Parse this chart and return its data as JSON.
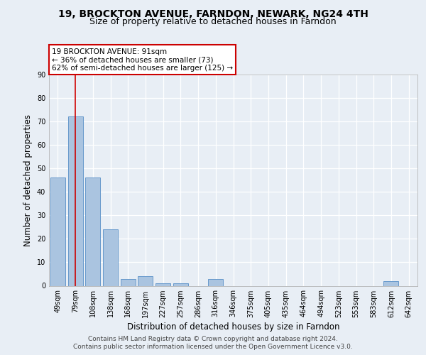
{
  "title1": "19, BROCKTON AVENUE, FARNDON, NEWARK, NG24 4TH",
  "title2": "Size of property relative to detached houses in Farndon",
  "xlabel": "Distribution of detached houses by size in Farndon",
  "ylabel": "Number of detached properties",
  "footer1": "Contains HM Land Registry data © Crown copyright and database right 2024.",
  "footer2": "Contains public sector information licensed under the Open Government Licence v3.0.",
  "annotation_line1": "19 BROCKTON AVENUE: 91sqm",
  "annotation_line2": "← 36% of detached houses are smaller (73)",
  "annotation_line3": "62% of semi-detached houses are larger (125) →",
  "bar_labels": [
    "49sqm",
    "79sqm",
    "108sqm",
    "138sqm",
    "168sqm",
    "197sqm",
    "227sqm",
    "257sqm",
    "286sqm",
    "316sqm",
    "346sqm",
    "375sqm",
    "405sqm",
    "435sqm",
    "464sqm",
    "494sqm",
    "523sqm",
    "553sqm",
    "583sqm",
    "612sqm",
    "642sqm"
  ],
  "bar_values": [
    46,
    72,
    46,
    24,
    3,
    4,
    1,
    1,
    0,
    3,
    0,
    0,
    0,
    0,
    0,
    0,
    0,
    0,
    0,
    2,
    0
  ],
  "bar_color": "#aac4e0",
  "bar_edge_color": "#6699cc",
  "vline_x": 1.5,
  "vline_color": "#cc0000",
  "ylim": [
    0,
    90
  ],
  "yticks": [
    0,
    10,
    20,
    30,
    40,
    50,
    60,
    70,
    80,
    90
  ],
  "background_color": "#e8eef5",
  "plot_bg_color": "#e8eef5",
  "annotation_box_color": "#ffffff",
  "annotation_border_color": "#cc0000",
  "grid_color": "#ffffff",
  "title_fontsize": 10,
  "subtitle_fontsize": 9,
  "axis_label_fontsize": 8.5,
  "tick_fontsize": 7,
  "footer_fontsize": 6.5,
  "annotation_fontsize": 7.5
}
